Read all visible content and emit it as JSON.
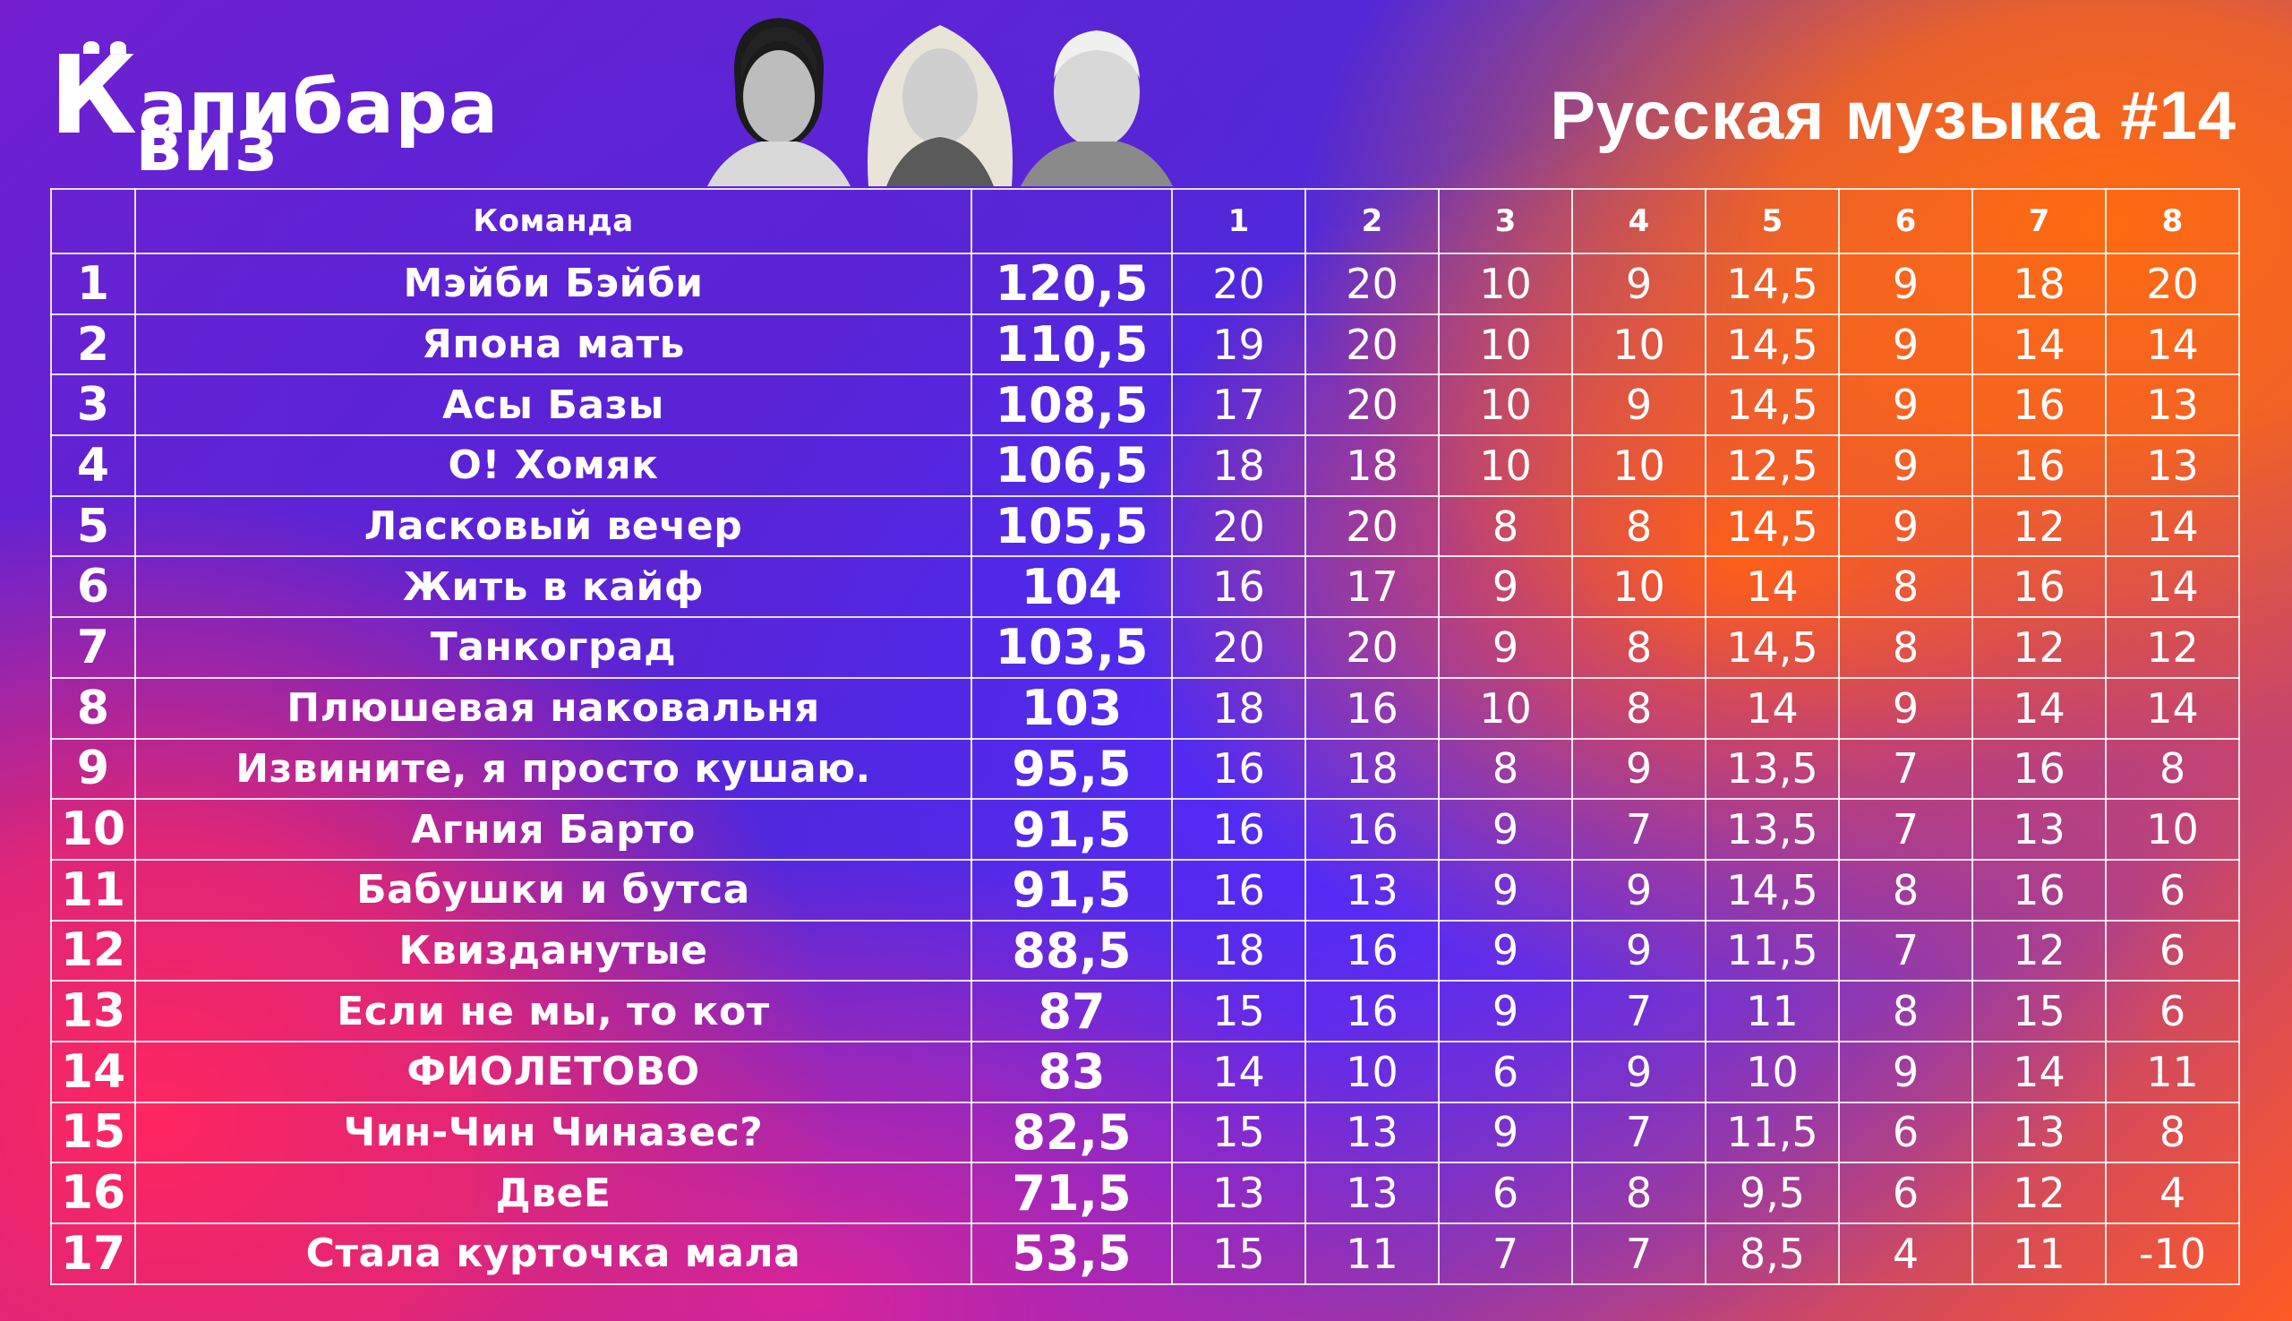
{
  "logo": {
    "line1": "апибара",
    "line1_k": "К",
    "line2": "виз"
  },
  "title": "Русская музыка #14",
  "table": {
    "header": {
      "place": "",
      "team": "Команда",
      "total": "",
      "rounds": [
        "1",
        "2",
        "3",
        "4",
        "5",
        "6",
        "7",
        "8"
      ]
    },
    "rows": [
      {
        "place": "1",
        "team": "Мэйби Бэйби",
        "total": "120,5",
        "rounds": [
          "20",
          "20",
          "10",
          "9",
          "14,5",
          "9",
          "18",
          "20"
        ]
      },
      {
        "place": "2",
        "team": "Япона мать",
        "total": "110,5",
        "rounds": [
          "19",
          "20",
          "10",
          "10",
          "14,5",
          "9",
          "14",
          "14"
        ]
      },
      {
        "place": "3",
        "team": "Асы Базы",
        "total": "108,5",
        "rounds": [
          "17",
          "20",
          "10",
          "9",
          "14,5",
          "9",
          "16",
          "13"
        ]
      },
      {
        "place": "4",
        "team": "О! Хомяк",
        "total": "106,5",
        "rounds": [
          "18",
          "18",
          "10",
          "10",
          "12,5",
          "9",
          "16",
          "13"
        ]
      },
      {
        "place": "5",
        "team": "Ласковый вечер",
        "total": "105,5",
        "rounds": [
          "20",
          "20",
          "8",
          "8",
          "14,5",
          "9",
          "12",
          "14"
        ]
      },
      {
        "place": "6",
        "team": "Жить в кайф",
        "total": "104",
        "rounds": [
          "16",
          "17",
          "9",
          "10",
          "14",
          "8",
          "16",
          "14"
        ]
      },
      {
        "place": "7",
        "team": "Танкоград",
        "total": "103,5",
        "rounds": [
          "20",
          "20",
          "9",
          "8",
          "14,5",
          "8",
          "12",
          "12"
        ]
      },
      {
        "place": "8",
        "team": "Плюшевая наковальня",
        "total": "103",
        "rounds": [
          "18",
          "16",
          "10",
          "8",
          "14",
          "9",
          "14",
          "14"
        ]
      },
      {
        "place": "9",
        "team": "Извините, я просто кушаю.",
        "total": "95,5",
        "rounds": [
          "16",
          "18",
          "8",
          "9",
          "13,5",
          "7",
          "16",
          "8"
        ]
      },
      {
        "place": "10",
        "team": "Агния Барто",
        "total": "91,5",
        "rounds": [
          "16",
          "16",
          "9",
          "7",
          "13,5",
          "7",
          "13",
          "10"
        ]
      },
      {
        "place": "11",
        "team": "Бабушки и бутса",
        "total": "91,5",
        "rounds": [
          "16",
          "13",
          "9",
          "9",
          "14,5",
          "8",
          "16",
          "6"
        ]
      },
      {
        "place": "12",
        "team": "Квизданутые",
        "total": "88,5",
        "rounds": [
          "18",
          "16",
          "9",
          "9",
          "11,5",
          "7",
          "12",
          "6"
        ]
      },
      {
        "place": "13",
        "team": "Если не мы, то кот",
        "total": "87",
        "rounds": [
          "15",
          "16",
          "9",
          "7",
          "11",
          "8",
          "15",
          "6"
        ]
      },
      {
        "place": "14",
        "team": "ФИОЛЕТОВО",
        "total": "83",
        "rounds": [
          "14",
          "10",
          "6",
          "9",
          "10",
          "9",
          "14",
          "11"
        ]
      },
      {
        "place": "15",
        "team": "Чин-Чин Чиназес?",
        "total": "82,5",
        "rounds": [
          "15",
          "13",
          "9",
          "7",
          "11,5",
          "6",
          "13",
          "8"
        ]
      },
      {
        "place": "16",
        "team": "ДвеЕ",
        "total": "71,5",
        "rounds": [
          "13",
          "13",
          "6",
          "8",
          "9,5",
          "6",
          "12",
          "4"
        ]
      },
      {
        "place": "17",
        "team": "Стала курточка мала",
        "total": "53,5",
        "rounds": [
          "15",
          "11",
          "7",
          "7",
          "8,5",
          "4",
          "11",
          "-10"
        ]
      }
    ]
  }
}
